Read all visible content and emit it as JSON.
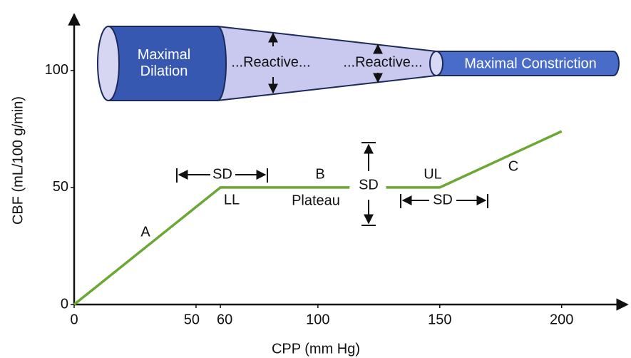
{
  "chart_data": {
    "type": "line",
    "x_label": "CPP (mm Hg)",
    "y_label": "CBF (mL/100 g/min)",
    "x": [
      0,
      60,
      113,
      120,
      128,
      150,
      200
    ],
    "series": [
      {
        "color": "#6aa832",
        "values": [
          0,
          50,
          50,
          null,
          50,
          50,
          74
        ]
      }
    ],
    "xlim": [
      0,
      227
    ],
    "ylim": [
      0,
      124
    ],
    "xticks": [
      0,
      50,
      60,
      100,
      150,
      200
    ],
    "yticks": [
      0,
      50,
      100
    ],
    "annotations": [
      "A",
      "B",
      "C",
      "LL",
      "UL",
      "Plateau",
      "SD",
      "SD",
      "SD"
    ],
    "vessel_labels": [
      "Maximal Dilation",
      "...Reactive...",
      "...Reactive...",
      "Maximal Constriction"
    ]
  }
}
